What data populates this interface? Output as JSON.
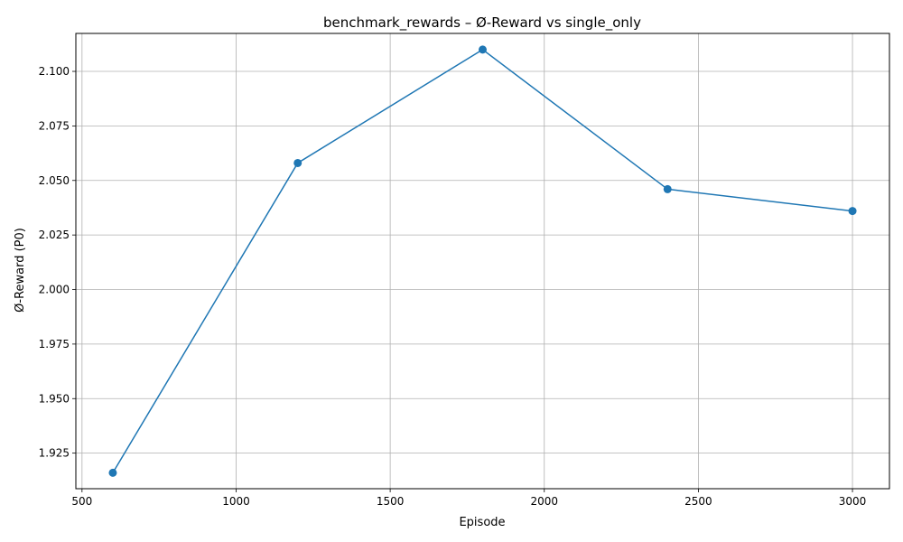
{
  "chart_data": {
    "type": "line",
    "title": "benchmark_rewards – Ø-Reward vs single_only",
    "xlabel": "Episode",
    "ylabel": "Ø-Reward (P0)",
    "x": [
      600,
      1200,
      1800,
      2400,
      3000
    ],
    "series": [
      {
        "values": [
          1.916,
          2.058,
          2.11,
          2.046,
          2.036
        ],
        "color": "#1f77b4"
      }
    ],
    "xlim": [
      480,
      3120
    ],
    "ylim": [
      1.9087,
      2.1174
    ],
    "xticks": [
      500,
      1000,
      1500,
      2000,
      2500,
      3000
    ],
    "xtick_labels": [
      "500",
      "1000",
      "1500",
      "2000",
      "2500",
      "3000"
    ],
    "yticks": [
      1.925,
      1.95,
      1.975,
      2.0,
      2.025,
      2.05,
      2.075,
      2.1
    ],
    "ytick_labels": [
      "1.925",
      "1.950",
      "1.975",
      "2.000",
      "2.025",
      "2.050",
      "2.075",
      "2.100"
    ],
    "grid": true,
    "marker": "circle",
    "grid_color": "#b0b0b0"
  }
}
